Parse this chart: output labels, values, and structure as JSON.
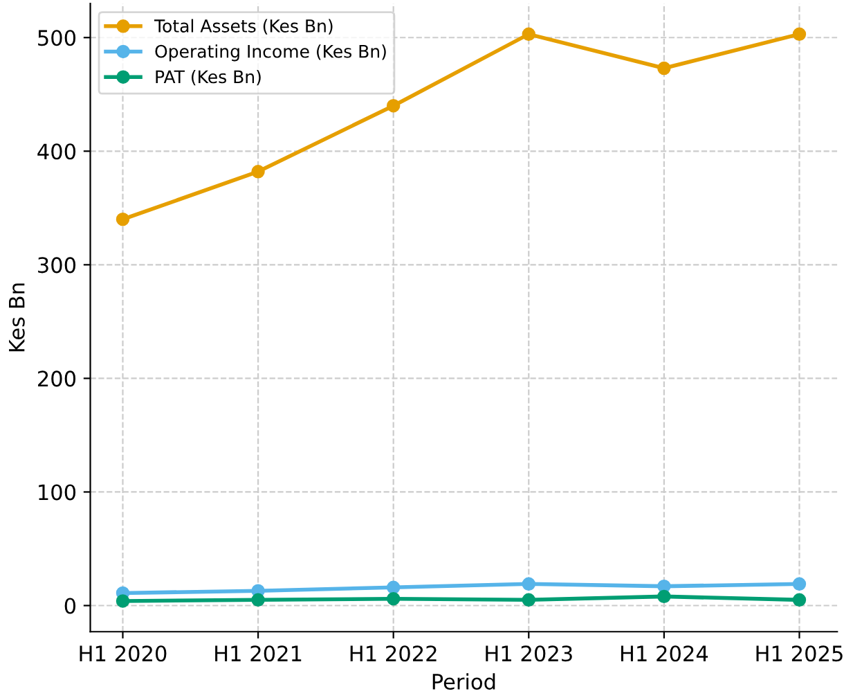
{
  "chart_data": {
    "type": "line",
    "xlabel": "Period",
    "ylabel": "Kes Bn",
    "categories": [
      "H1 2020",
      "H1 2021",
      "H1 2022",
      "H1 2023",
      "H1 2024",
      "H1 2025"
    ],
    "series": [
      {
        "name": "Total Assets (Kes Bn)",
        "color": "#e69f00",
        "values": [
          340,
          382,
          440,
          503,
          473,
          503
        ]
      },
      {
        "name": "Operating Income (Kes Bn)",
        "color": "#56b4e9",
        "values": [
          11,
          13,
          16,
          19,
          17,
          19
        ]
      },
      {
        "name": "PAT (Kes Bn)",
        "color": "#009e73",
        "values": [
          4,
          5,
          6,
          5,
          8,
          5
        ]
      }
    ],
    "ylim": [
      -23,
      530
    ],
    "yticks": [
      0,
      100,
      200,
      300,
      400,
      500
    ],
    "grid": true,
    "legend": "top left",
    "marker": "circle",
    "line_style": "solid"
  }
}
